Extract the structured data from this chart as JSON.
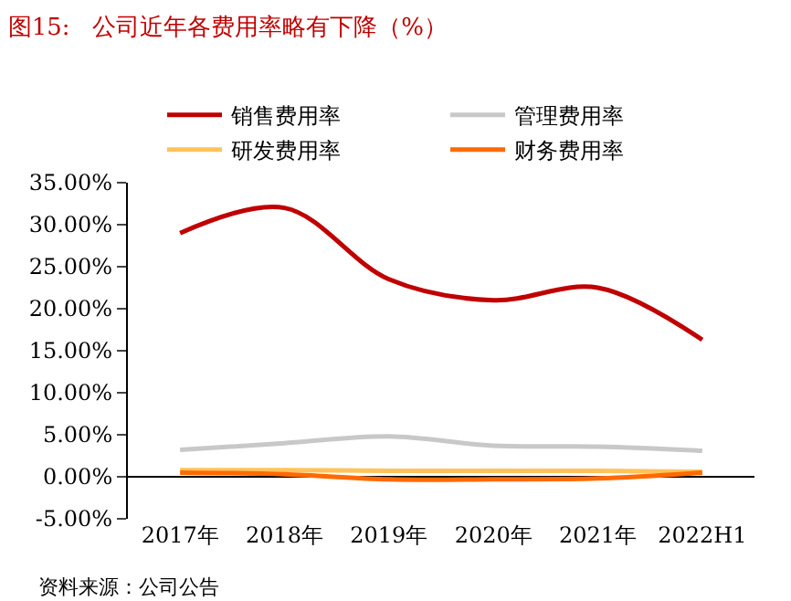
{
  "chart_data": {
    "type": "line",
    "title": "图15:   公司近年各费用率略有下降（%）",
    "categories": [
      "2017年",
      "2018年",
      "2019年",
      "2020年",
      "2021年",
      "2022H1"
    ],
    "series": [
      {
        "name": "销售费用率",
        "color": "#c00000",
        "values": [
          29,
          32,
          23.5,
          21,
          22.5,
          16.3
        ]
      },
      {
        "name": "管理费用率",
        "color": "#c8c8c8",
        "values": [
          3.2,
          4,
          4.8,
          3.7,
          3.6,
          3.1
        ]
      },
      {
        "name": "研发费用率",
        "color": "#ffc35a",
        "values": [
          0.8,
          0.8,
          0.7,
          0.7,
          0.7,
          0.6
        ]
      },
      {
        "name": "财务费用率",
        "color": "#ff6a00",
        "values": [
          0.5,
          0.3,
          -0.3,
          -0.3,
          -0.2,
          0.5
        ]
      }
    ],
    "ylim": [
      -5,
      35
    ],
    "yticks": [
      {
        "value": -5,
        "label": "-5.00%"
      },
      {
        "value": 0,
        "label": "0.00%"
      },
      {
        "value": 5,
        "label": "5.00%"
      },
      {
        "value": 10,
        "label": "10.00%"
      },
      {
        "value": 15,
        "label": "15.00%"
      },
      {
        "value": 20,
        "label": "20.00%"
      },
      {
        "value": 25,
        "label": "25.00%"
      },
      {
        "value": 30,
        "label": "30.00%"
      },
      {
        "value": 35,
        "label": "35.00%"
      }
    ],
    "legend": "top",
    "marker": "none",
    "line_style": "solid",
    "annotations": [
      "资料来源：公司公告"
    ]
  }
}
